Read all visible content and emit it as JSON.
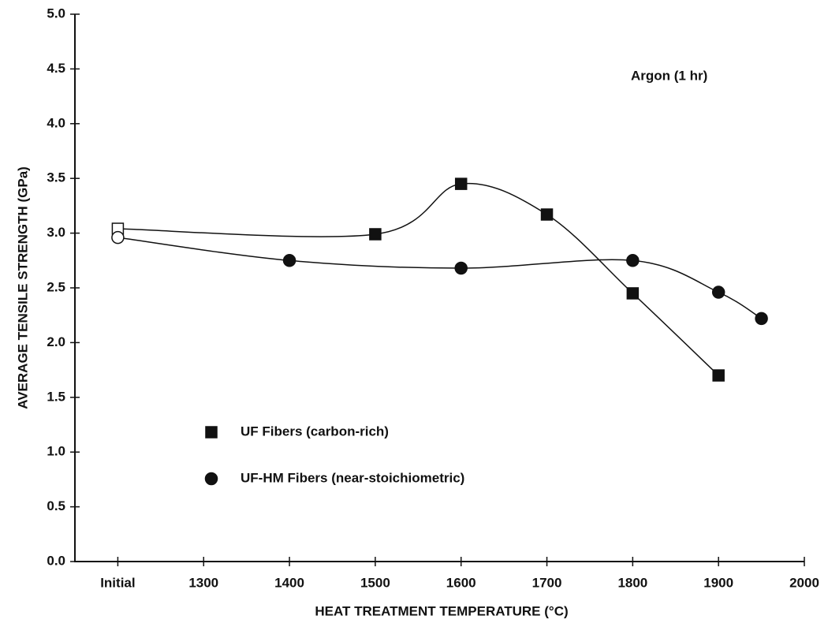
{
  "chart_data": {
    "type": "scatter",
    "annotation": "Argon  (1 hr)",
    "x_label": "HEAT TREATMENT  TEMPERATURE  (°C)",
    "y_label": "AVERAGE  TENSILE  STRENGTH  (GPa)",
    "xlim": [
      1150,
      2000
    ],
    "ylim": [
      0,
      5.0
    ],
    "xticks": [
      {
        "value": 1200,
        "label": "Initial"
      },
      1300,
      1400,
      1500,
      1600,
      1700,
      1800,
      1900,
      2000
    ],
    "yticks": [
      {
        "value": 0,
        "label": "0.0"
      },
      0.5,
      {
        "value": 1,
        "label": "1.0"
      },
      1.5,
      {
        "value": 2,
        "label": "2.0"
      },
      2.5,
      {
        "value": 3,
        "label": "3.0"
      },
      3.5,
      {
        "value": 4,
        "label": "4.0"
      },
      4.5,
      {
        "value": 5,
        "label": "5.0"
      }
    ],
    "series": [
      {
        "name": "UF Fibers (carbon-rich)",
        "marker": "square",
        "color": "#111111",
        "open_indices": [
          0
        ],
        "x": [
          1200,
          1500,
          1600,
          1700,
          1800,
          1900
        ],
        "values": [
          3.04,
          2.99,
          3.45,
          3.17,
          2.45,
          1.7
        ]
      },
      {
        "name": "UF-HM Fibers (near-stoichiometric)",
        "marker": "circle",
        "color": "#111111",
        "open_indices": [
          0
        ],
        "x": [
          1200,
          1400,
          1600,
          1800,
          1900,
          1950
        ],
        "values": [
          2.96,
          2.75,
          2.68,
          2.75,
          2.46,
          2.22
        ]
      }
    ]
  }
}
